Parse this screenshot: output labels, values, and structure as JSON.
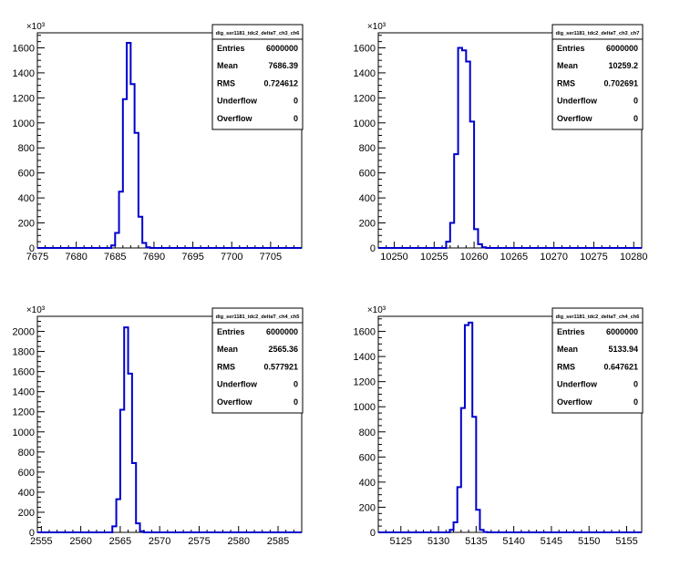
{
  "exponent_label": "×10³",
  "stat_labels": {
    "entries": "Entries",
    "mean": "Mean",
    "rms": "RMS",
    "underflow": "Underflow",
    "overflow": "Overflow"
  },
  "colors": {
    "line": "#0000cc",
    "frame": "#000000",
    "background": "#ffffff"
  },
  "chart_data": [
    {
      "type": "histogram",
      "title": "dig_ser1181_tdc2_deltaT_ch3_ch6",
      "stats": {
        "entries": "6000000",
        "mean": "7686.39",
        "rms": "0.724612",
        "underflow": "0",
        "overflow": "0"
      },
      "xlim": [
        7675,
        7709
      ],
      "x_ticks": [
        7675,
        7680,
        7685,
        7690,
        7695,
        7700,
        7705
      ],
      "ylim": [
        0,
        1720
      ],
      "y_ticks": [
        0,
        200,
        400,
        600,
        800,
        1000,
        1200,
        1400,
        1600
      ],
      "y_multiplier": "10^3",
      "bin_width": 0.5,
      "bins": [
        {
          "x": 7684.5,
          "y": 20
        },
        {
          "x": 7685.0,
          "y": 120
        },
        {
          "x": 7685.5,
          "y": 450
        },
        {
          "x": 7686.0,
          "y": 1190
        },
        {
          "x": 7686.5,
          "y": 1640
        },
        {
          "x": 7687.0,
          "y": 1310
        },
        {
          "x": 7687.5,
          "y": 920
        },
        {
          "x": 7688.0,
          "y": 250
        },
        {
          "x": 7688.5,
          "y": 40
        },
        {
          "x": 7689.0,
          "y": 5
        }
      ]
    },
    {
      "type": "histogram",
      "title": "dig_ser1181_tdc2_deltaT_ch3_ch7",
      "stats": {
        "entries": "6000000",
        "mean": "10259.2",
        "rms": "0.702691",
        "underflow": "0",
        "overflow": "0"
      },
      "xlim": [
        10248,
        10281
      ],
      "x_ticks": [
        10250,
        10255,
        10260,
        10265,
        10270,
        10275,
        10280
      ],
      "ylim": [
        0,
        1720
      ],
      "y_ticks": [
        0,
        200,
        400,
        600,
        800,
        1000,
        1200,
        1400,
        1600
      ],
      "y_multiplier": "10^3",
      "bin_width": 0.5,
      "bins": [
        {
          "x": 10256.5,
          "y": 50
        },
        {
          "x": 10257.0,
          "y": 200
        },
        {
          "x": 10257.5,
          "y": 750
        },
        {
          "x": 10258.0,
          "y": 1600
        },
        {
          "x": 10258.5,
          "y": 1580
        },
        {
          "x": 10259.0,
          "y": 1490
        },
        {
          "x": 10259.5,
          "y": 1010
        },
        {
          "x": 10260.0,
          "y": 150
        },
        {
          "x": 10260.5,
          "y": 30
        },
        {
          "x": 10261.0,
          "y": 5
        }
      ]
    },
    {
      "type": "histogram",
      "title": "dig_ser1181_tdc2_deltaT_ch4_ch5",
      "stats": {
        "entries": "6000000",
        "mean": "2565.36",
        "rms": "0.577921",
        "underflow": "0",
        "overflow": "0"
      },
      "xlim": [
        2554.5,
        2588
      ],
      "x_ticks": [
        2555,
        2560,
        2565,
        2570,
        2575,
        2580,
        2585
      ],
      "ylim": [
        0,
        2150
      ],
      "y_ticks": [
        0,
        200,
        400,
        600,
        800,
        1000,
        1200,
        1400,
        1600,
        1800,
        2000
      ],
      "y_multiplier": "10^3",
      "bin_width": 0.5,
      "bins": [
        {
          "x": 2564.0,
          "y": 60
        },
        {
          "x": 2564.5,
          "y": 330
        },
        {
          "x": 2565.0,
          "y": 1220
        },
        {
          "x": 2565.5,
          "y": 2040
        },
        {
          "x": 2566.0,
          "y": 1580
        },
        {
          "x": 2566.5,
          "y": 690
        },
        {
          "x": 2567.0,
          "y": 90
        },
        {
          "x": 2567.5,
          "y": 10
        }
      ]
    },
    {
      "type": "histogram",
      "title": "dig_ser1181_tdc2_deltaT_ch4_ch6",
      "stats": {
        "entries": "6000000",
        "mean": "5133.94",
        "rms": "0.647621",
        "underflow": "0",
        "overflow": "0"
      },
      "xlim": [
        5122,
        5157
      ],
      "x_ticks": [
        5125,
        5130,
        5135,
        5140,
        5145,
        5150,
        5155
      ],
      "ylim": [
        0,
        1720
      ],
      "y_ticks": [
        0,
        200,
        400,
        600,
        800,
        1000,
        1200,
        1400,
        1600
      ],
      "y_multiplier": "10^3",
      "bin_width": 0.5,
      "bins": [
        {
          "x": 5131.5,
          "y": 20
        },
        {
          "x": 5132.0,
          "y": 80
        },
        {
          "x": 5132.5,
          "y": 360
        },
        {
          "x": 5133.0,
          "y": 990
        },
        {
          "x": 5133.5,
          "y": 1650
        },
        {
          "x": 5134.0,
          "y": 1670
        },
        {
          "x": 5134.5,
          "y": 920
        },
        {
          "x": 5135.0,
          "y": 180
        },
        {
          "x": 5135.5,
          "y": 20
        },
        {
          "x": 5136.0,
          "y": 3
        }
      ]
    }
  ]
}
